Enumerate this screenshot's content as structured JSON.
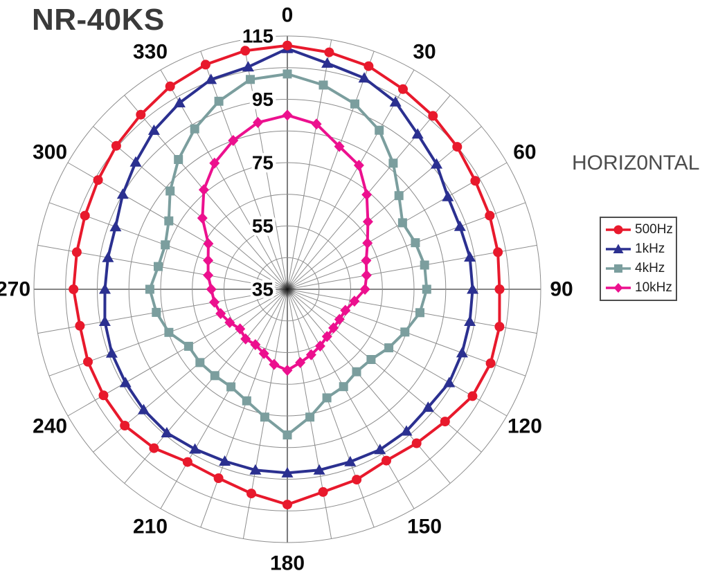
{
  "title": "NR-40KS",
  "orientation_label": "HORIZ0NTAL",
  "colors": {
    "background": "#ffffff",
    "grid": "#8c8c8c",
    "axis": "#5e5e5e",
    "label_text": "#0a0a0a",
    "title_text": "#3a3a3a",
    "legend_border": "#4d4d4d"
  },
  "chart_data": {
    "type": "line",
    "subtype": "polar-directivity",
    "title": "NR-40KS",
    "annotation": "HORIZ0NTAL",
    "angle_unit": "degrees",
    "angle_direction": "clockwise-from-top",
    "angle_step_deg": 10,
    "angle_labels": [
      0,
      30,
      60,
      90,
      120,
      150,
      180,
      210,
      240,
      270,
      300,
      330
    ],
    "radial_axis": {
      "min": 35,
      "max": 115,
      "ring_step": 10,
      "tick_labels": [
        115,
        95,
        75,
        55,
        35
      ]
    },
    "grid": "on",
    "legend_position": "right",
    "series": [
      {
        "name": "500Hz",
        "color": "#e8192c",
        "marker": "circle",
        "values": [
          112,
          111,
          110,
          108,
          106.5,
          105,
          103.5,
          103,
          102.5,
          102,
          103,
          103.3,
          102.5,
          100,
          98.5,
          97.5,
          99,
          100,
          103,
          100.5,
          98.5,
          98,
          100.5,
          102,
          102,
          102,
          101.5,
          102.5,
          102.5,
          103,
          104,
          105.5,
          107,
          109,
          110.5,
          111.5
        ]
      },
      {
        "name": "1kHz",
        "color": "#2b3090",
        "marker": "triangle",
        "values": [
          111,
          107.5,
          106,
          103.3,
          99,
          96.5,
          93.5,
          93,
          93.5,
          93.5,
          93.5,
          93.7,
          94,
          93,
          93.5,
          93.5,
          93,
          93,
          93,
          93,
          92.8,
          93.3,
          94.2,
          94.2,
          94,
          94,
          93.5,
          92.6,
          92.5,
          92.7,
          95,
          97.5,
          100.5,
          103,
          105.5,
          106.3
        ]
      },
      {
        "name": "4kHz",
        "color": "#7b9e9e",
        "marker": "square",
        "values": [
          103,
          100.5,
          97.3,
          93,
          87,
          81,
          77,
          78,
          79,
          79,
          77.5,
          74.5,
          72,
          69.5,
          69,
          70.5,
          71.5,
          76,
          81,
          76,
          72.5,
          70.6,
          70.6,
          71,
          71,
          74.8,
          77,
          78.4,
          76.4,
          76,
          78.2,
          83.3,
          88.5,
          93.5,
          98.2,
          102.3
        ]
      },
      {
        "name": "10kHz",
        "color": "#ec108e",
        "marker": "diamond",
        "values": [
          90,
          88,
          83,
          80.2,
          74,
          68.2,
          64.2,
          61.5,
          60.4,
          59.5,
          56.5,
          54.5,
          54,
          54,
          54.5,
          55.7,
          57,
          58.5,
          60.6,
          59.1,
          56.6,
          55.2,
          55.5,
          54.5,
          56,
          57.4,
          58.4,
          59,
          60.4,
          61.6,
          63.8,
          70,
          76,
          81,
          85,
          88.5
        ]
      }
    ]
  }
}
